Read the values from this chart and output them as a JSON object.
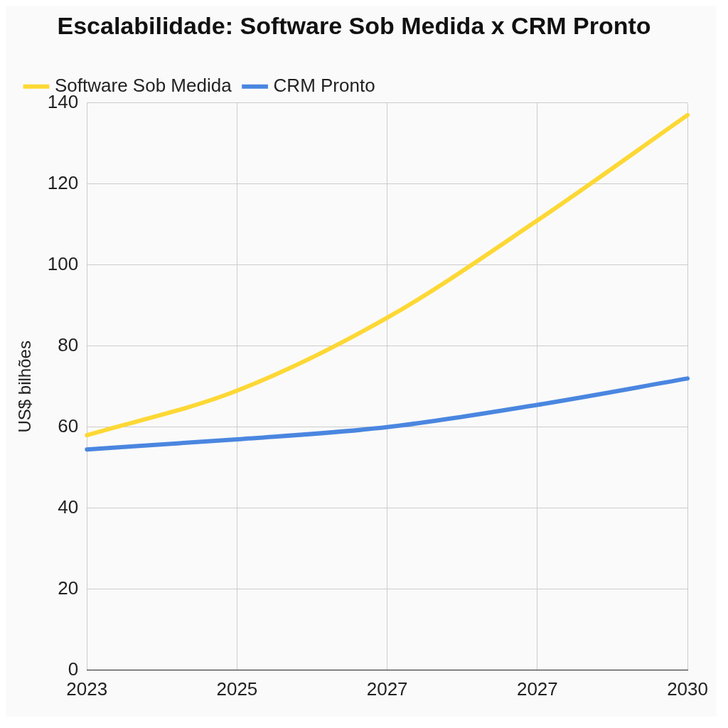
{
  "chart_data": {
    "type": "line",
    "title": "Escalabilidade: Software Sob Medida x CRM Pronto",
    "ylabel": "US$ bilhões",
    "categories": [
      "2023",
      "2025",
      "2027",
      "2027",
      "2030"
    ],
    "series": [
      {
        "name": "Software Sob Medida",
        "color": "#fdd835",
        "values": [
          58,
          69,
          87,
          111,
          137
        ]
      },
      {
        "name": "CRM Pronto",
        "color": "#4a86e0",
        "values": [
          54.5,
          57,
          60,
          65.5,
          72
        ]
      }
    ],
    "ylim": [
      0,
      140
    ],
    "yticks": [
      0,
      20,
      40,
      60,
      80,
      100,
      120,
      140
    ],
    "grid": true,
    "legend": "top left",
    "marker": "none"
  }
}
